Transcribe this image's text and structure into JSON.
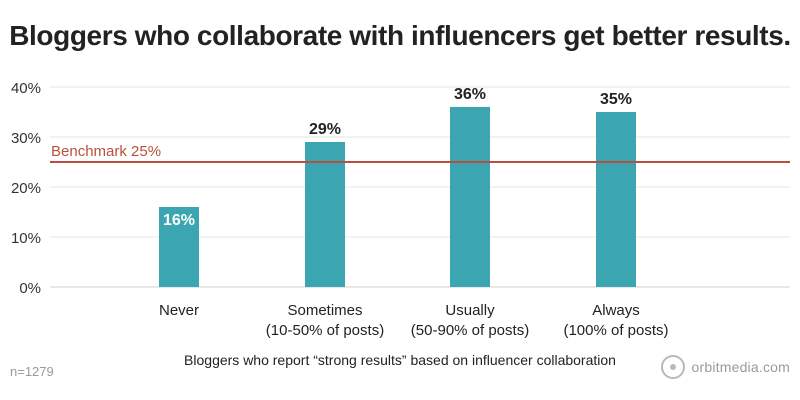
{
  "chart_data": {
    "type": "bar",
    "title": "Bloggers who collaborate with influencers get better results.",
    "xlabel": "Bloggers who report “strong results” based on influencer collaboration",
    "ylabel": "",
    "categories": [
      [
        "Never"
      ],
      [
        "Sometimes",
        "(10-50% of posts)"
      ],
      [
        "Usually",
        "(50-90% of posts)"
      ],
      [
        "Always",
        "(100% of posts)"
      ]
    ],
    "values": [
      16,
      29,
      36,
      35
    ],
    "value_labels": [
      "16%",
      "29%",
      "36%",
      "35%"
    ],
    "ylim": [
      0,
      40
    ],
    "yticks": [
      "0%",
      "10%",
      "20%",
      "30%",
      "40%"
    ],
    "grid": true,
    "bar_color": "#3ba5b1",
    "benchmark": {
      "label": "Benchmark 25%",
      "value": 25,
      "color": "#b9503e"
    }
  },
  "footnote": "n=1279",
  "logo": {
    "text": "orbitmedia.com",
    "icon": "orbit-logo-icon"
  }
}
